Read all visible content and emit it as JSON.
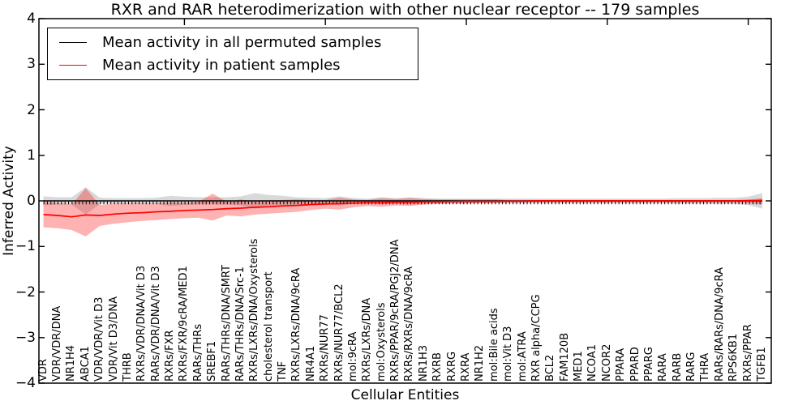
{
  "chart_data": {
    "type": "line",
    "title": "RXR and RAR heterodimerization with other nuclear receptor -- 179 samples",
    "xlabel": "Cellular Entities",
    "ylabel": "Inferred Activity",
    "ylim": [
      -4,
      4
    ],
    "ytick_labels": [
      "4",
      "3",
      "2",
      "1",
      "0",
      "−1",
      "−2",
      "−3",
      "−4"
    ],
    "ytick_values": [
      4,
      3,
      2,
      1,
      0,
      -1,
      -2,
      -3,
      -4
    ],
    "grid": false,
    "legend_position": "upper left",
    "legend": [
      {
        "label": "Mean activity in all permuted samples",
        "color": "#000000"
      },
      {
        "label": "Mean activity in patient samples",
        "color": "#ff0000"
      }
    ],
    "categories": [
      "VDR",
      "VDR/VDR/DNA",
      "NR1H4",
      "ABCA1",
      "VDR/VDR/Vit D3",
      "VDR/Vit D3/DNA",
      "THRB",
      "RXRs/VDR/DNA/Vit D3",
      "RARs/VDR/DNA/Vit D3",
      "RXRs/FXR",
      "RXRs/FXR/9cRA/MED1",
      "RARs/THRs",
      "SREBF1",
      "RARs/THRs/DNA/SMRT",
      "RARs/THRs/DNA/Src-1",
      "RXRs/LXRs/DNA/Oxysterols",
      "cholesterol transport",
      "TNF",
      "RXRs/LXRs/DNA/9cRA",
      "NR4A1",
      "RXRs/NUR77",
      "RXRs/NUR77/BCL2",
      "mol:9cRA",
      "RXRs/LXRs/DNA",
      "mol:Oxysterols",
      "RXRs/PPAR/9cRA/PGJ2/DNA",
      "RXRs/RXRs/DNA/9cRA",
      "NR1H3",
      "RXRB",
      "RXRG",
      "RXRA",
      "NR1H2",
      "mol:Bile acids",
      "mol:Vit D3",
      "mol:ATRA",
      "RXR alpha/CCPG",
      "BCL2",
      "FAM120B",
      "MED1",
      "NCOA1",
      "NCOR2",
      "PPARA",
      "PPARD",
      "PPARG",
      "RARA",
      "RARB",
      "RARG",
      "THRA",
      "RARs/RARs/DNA/9cRA",
      "RPS6KB1",
      "RXRs/PPAR",
      "TGFB1"
    ],
    "series": [
      {
        "name": "Mean activity in all permuted samples",
        "color": "#000000",
        "band_color": "rgba(0,0,0,0.15)",
        "values": [
          0,
          0,
          0,
          0,
          0,
          0,
          0,
          0,
          0,
          0,
          0,
          0,
          0,
          0,
          0,
          0,
          0,
          0,
          0,
          0,
          0,
          0,
          0,
          0,
          0,
          0,
          0,
          0,
          0,
          0,
          0,
          0,
          0,
          0,
          0,
          0,
          0,
          0,
          0,
          0,
          0,
          0,
          0,
          0,
          0,
          0,
          0,
          0,
          0,
          0,
          0,
          0
        ],
        "band_upper": [
          0.1,
          0.08,
          0.08,
          0.3,
          0.07,
          0.06,
          0.06,
          0.06,
          0.07,
          0.11,
          0.09,
          0.08,
          0.08,
          0.08,
          0.1,
          0.17,
          0.13,
          0.11,
          0.08,
          0.07,
          0.06,
          0.1,
          0.06,
          0.05,
          0.08,
          0.06,
          0.08,
          0.06,
          0.05,
          0.05,
          0.05,
          0.05,
          0.05,
          0.05,
          0.05,
          0.05,
          0.05,
          0.05,
          0.05,
          0.05,
          0.05,
          0.05,
          0.05,
          0.05,
          0.05,
          0.06,
          0.06,
          0.06,
          0.07,
          0.07,
          0.09,
          0.17
        ],
        "band_lower": [
          -0.1,
          -0.08,
          -0.08,
          -0.3,
          -0.07,
          -0.06,
          -0.06,
          -0.06,
          -0.07,
          -0.11,
          -0.09,
          -0.08,
          -0.08,
          -0.08,
          -0.1,
          -0.17,
          -0.13,
          -0.11,
          -0.08,
          -0.07,
          -0.06,
          -0.1,
          -0.06,
          -0.05,
          -0.08,
          -0.06,
          -0.08,
          -0.06,
          -0.05,
          -0.05,
          -0.05,
          -0.05,
          -0.05,
          -0.05,
          -0.05,
          -0.05,
          -0.05,
          -0.05,
          -0.05,
          -0.05,
          -0.05,
          -0.05,
          -0.05,
          -0.05,
          -0.05,
          -0.06,
          -0.06,
          -0.06,
          -0.07,
          -0.07,
          -0.09,
          -0.17
        ]
      },
      {
        "name": "Mean activity in patient samples",
        "color": "#ff0000",
        "band_color": "rgba(255,0,0,0.30)",
        "values": [
          -0.3,
          -0.32,
          -0.35,
          -0.31,
          -0.32,
          -0.29,
          -0.27,
          -0.26,
          -0.24,
          -0.23,
          -0.21,
          -0.2,
          -0.19,
          -0.17,
          -0.16,
          -0.14,
          -0.13,
          -0.11,
          -0.1,
          -0.08,
          -0.07,
          -0.06,
          -0.05,
          -0.04,
          -0.04,
          -0.03,
          -0.03,
          -0.02,
          -0.02,
          -0.015,
          -0.01,
          -0.01,
          -0.01,
          -0.005,
          -0.005,
          0,
          0,
          0,
          0,
          0,
          0,
          0,
          0,
          0,
          0,
          0,
          0,
          0,
          0,
          0,
          0.005,
          0.01
        ],
        "band_upper": [
          -0.02,
          -0.05,
          -0.08,
          0.28,
          -0.09,
          -0.06,
          -0.05,
          -0.05,
          -0.06,
          -0.03,
          -0.04,
          -0.02,
          0.16,
          -0.02,
          0.03,
          -0.01,
          0.01,
          0.02,
          0.03,
          0.02,
          0.02,
          0.07,
          0.03,
          0.02,
          0.06,
          0.04,
          0.06,
          0.04,
          0.03,
          0.03,
          0.03,
          0.03,
          0.03,
          0.02,
          0.02,
          0.02,
          0.02,
          0.02,
          0.02,
          0.02,
          0.02,
          0.02,
          0.02,
          0.02,
          0.02,
          0.02,
          0.02,
          0.02,
          0.02,
          0.02,
          0.03,
          0.06
        ],
        "band_lower": [
          -0.58,
          -0.6,
          -0.64,
          -0.78,
          -0.55,
          -0.5,
          -0.47,
          -0.44,
          -0.42,
          -0.4,
          -0.38,
          -0.37,
          -0.43,
          -0.32,
          -0.34,
          -0.3,
          -0.28,
          -0.26,
          -0.24,
          -0.2,
          -0.17,
          -0.19,
          -0.14,
          -0.11,
          -0.13,
          -0.1,
          -0.11,
          -0.08,
          -0.07,
          -0.06,
          -0.06,
          -0.05,
          -0.05,
          -0.04,
          -0.04,
          -0.04,
          -0.04,
          -0.04,
          -0.04,
          -0.04,
          -0.04,
          -0.04,
          -0.04,
          -0.04,
          -0.04,
          -0.04,
          -0.04,
          -0.04,
          -0.04,
          -0.04,
          -0.05,
          -0.08
        ]
      }
    ],
    "top_tick_category_indices": [
      10,
      20,
      30,
      40,
      50
    ]
  }
}
